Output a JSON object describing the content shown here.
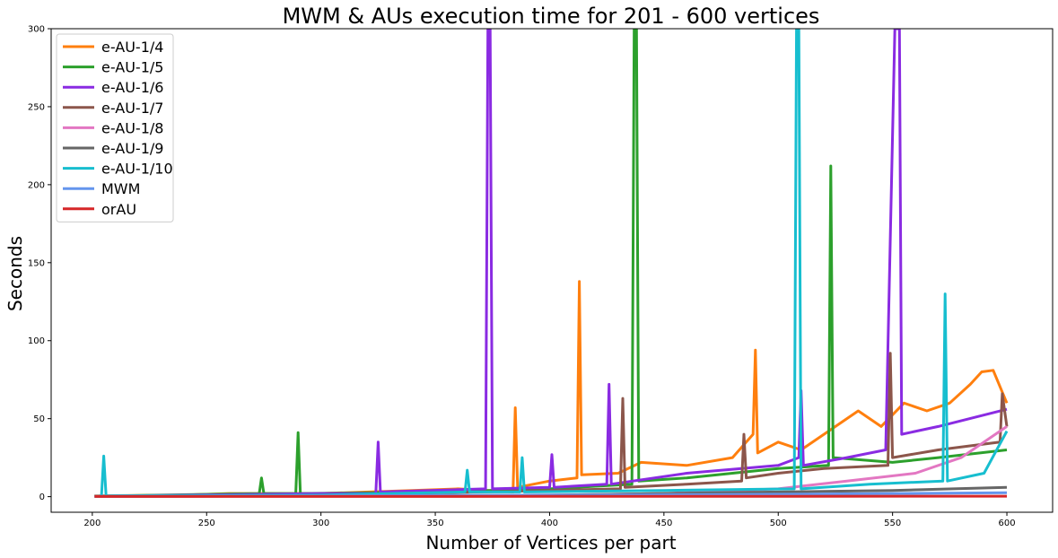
{
  "chart_data": {
    "type": "line",
    "title": "MWM & AUs execution time for 201 - 600 vertices",
    "xlabel": "Number of Vertices per part",
    "ylabel": "Seconds",
    "xlim": [
      182,
      620
    ],
    "ylim": [
      -10,
      300
    ],
    "xticks": [
      "200",
      "250",
      "300",
      "350",
      "400",
      "450",
      "500",
      "550",
      "600"
    ],
    "yticks": [
      "0",
      "50",
      "100",
      "150",
      "200",
      "250",
      "300"
    ],
    "grid": false,
    "legend_position": "top-left",
    "series": [
      {
        "name": "e-AU-1/4",
        "color": "#ff7f0e",
        "points": [
          [
            201,
            0.5
          ],
          [
            240,
            1
          ],
          [
            260,
            2
          ],
          [
            300,
            2
          ],
          [
            340,
            4
          ],
          [
            360,
            5
          ],
          [
            384,
            3
          ],
          [
            385,
            57
          ],
          [
            386,
            6
          ],
          [
            400,
            10
          ],
          [
            412,
            12
          ],
          [
            413,
            138
          ],
          [
            414,
            14
          ],
          [
            430,
            15
          ],
          [
            440,
            22
          ],
          [
            460,
            20
          ],
          [
            480,
            25
          ],
          [
            489,
            40
          ],
          [
            490,
            94
          ],
          [
            491,
            28
          ],
          [
            500,
            35
          ],
          [
            510,
            30
          ],
          [
            520,
            40
          ],
          [
            535,
            55
          ],
          [
            545,
            45
          ],
          [
            555,
            60
          ],
          [
            565,
            55
          ],
          [
            575,
            60
          ],
          [
            584,
            72
          ],
          [
            589,
            80
          ],
          [
            594,
            81
          ],
          [
            600,
            60
          ]
        ]
      },
      {
        "name": "e-AU-1/5",
        "color": "#2ca02c",
        "points": [
          [
            201,
            0.3
          ],
          [
            273,
            2
          ],
          [
            274,
            12
          ],
          [
            275,
            2
          ],
          [
            289,
            2
          ],
          [
            290,
            41
          ],
          [
            291,
            2
          ],
          [
            350,
            3
          ],
          [
            400,
            5
          ],
          [
            436,
            8
          ],
          [
            437,
            300
          ],
          [
            438,
            300
          ],
          [
            439,
            10
          ],
          [
            460,
            12
          ],
          [
            480,
            15
          ],
          [
            500,
            18
          ],
          [
            522,
            20
          ],
          [
            523,
            212
          ],
          [
            524,
            25
          ],
          [
            550,
            22
          ],
          [
            570,
            25
          ],
          [
            600,
            30
          ]
        ]
      },
      {
        "name": "e-AU-1/6",
        "color": "#8a2be2",
        "points": [
          [
            201,
            0.3
          ],
          [
            300,
            2
          ],
          [
            324,
            2
          ],
          [
            325,
            35
          ],
          [
            326,
            3
          ],
          [
            372,
            5
          ],
          [
            373,
            300
          ],
          [
            374,
            300
          ],
          [
            375,
            5
          ],
          [
            400,
            6
          ],
          [
            401,
            27
          ],
          [
            402,
            6
          ],
          [
            425,
            8
          ],
          [
            426,
            72
          ],
          [
            427,
            8
          ],
          [
            460,
            15
          ],
          [
            500,
            20
          ],
          [
            509,
            25
          ],
          [
            510,
            68
          ],
          [
            511,
            20
          ],
          [
            530,
            25
          ],
          [
            547,
            30
          ],
          [
            551,
            300
          ],
          [
            553,
            300
          ],
          [
            554,
            40
          ],
          [
            570,
            45
          ],
          [
            600,
            56
          ]
        ]
      },
      {
        "name": "e-AU-1/7",
        "color": "#8c564b",
        "points": [
          [
            201,
            0.3
          ],
          [
            300,
            1
          ],
          [
            400,
            4
          ],
          [
            431,
            5
          ],
          [
            432,
            63
          ],
          [
            433,
            6
          ],
          [
            460,
            8
          ],
          [
            484,
            10
          ],
          [
            485,
            40
          ],
          [
            486,
            12
          ],
          [
            500,
            15
          ],
          [
            520,
            18
          ],
          [
            548,
            20
          ],
          [
            549,
            92
          ],
          [
            550,
            25
          ],
          [
            570,
            30
          ],
          [
            597,
            35
          ],
          [
            598,
            66
          ],
          [
            600,
            45
          ]
        ]
      },
      {
        "name": "e-AU-1/8",
        "color": "#e377c2",
        "points": [
          [
            201,
            0.2
          ],
          [
            300,
            0.5
          ],
          [
            400,
            1
          ],
          [
            450,
            2
          ],
          [
            500,
            5
          ],
          [
            530,
            10
          ],
          [
            560,
            15
          ],
          [
            580,
            25
          ],
          [
            600,
            45
          ]
        ]
      },
      {
        "name": "e-AU-1/9",
        "color": "#666666",
        "points": [
          [
            201,
            0.2
          ],
          [
            300,
            0.5
          ],
          [
            400,
            1
          ],
          [
            450,
            2
          ],
          [
            500,
            3
          ],
          [
            550,
            4
          ],
          [
            600,
            6
          ]
        ]
      },
      {
        "name": "e-AU-1/10",
        "color": "#17becf",
        "points": [
          [
            201,
            0.2
          ],
          [
            204,
            0.5
          ],
          [
            205,
            26
          ],
          [
            206,
            0.5
          ],
          [
            300,
            1
          ],
          [
            330,
            2
          ],
          [
            363,
            3
          ],
          [
            364,
            17
          ],
          [
            365,
            3
          ],
          [
            387,
            3
          ],
          [
            388,
            25
          ],
          [
            389,
            3
          ],
          [
            450,
            4
          ],
          [
            507,
            5
          ],
          [
            508,
            300
          ],
          [
            509,
            300
          ],
          [
            510,
            5
          ],
          [
            540,
            8
          ],
          [
            572,
            10
          ],
          [
            573,
            130
          ],
          [
            574,
            10
          ],
          [
            590,
            15
          ],
          [
            600,
            42
          ]
        ]
      },
      {
        "name": "MWM",
        "color": "#6495ed",
        "points": [
          [
            201,
            0.2
          ],
          [
            300,
            0.5
          ],
          [
            400,
            1
          ],
          [
            500,
            1.5
          ],
          [
            600,
            2.5
          ]
        ]
      },
      {
        "name": "orAU",
        "color": "#d62728",
        "points": [
          [
            201,
            0.1
          ],
          [
            300,
            0.1
          ],
          [
            400,
            0.2
          ],
          [
            500,
            0.2
          ],
          [
            600,
            0.3
          ]
        ]
      }
    ]
  }
}
